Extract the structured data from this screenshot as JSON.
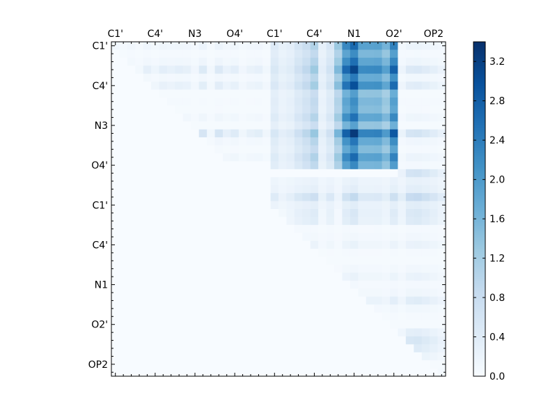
{
  "chart_data": {
    "type": "heatmap",
    "title": "",
    "xlabel": "",
    "ylabel": "",
    "n_cells": 42,
    "x_tick_labels": [
      "C1'",
      "C4'",
      "N3",
      "O4'",
      "C1'",
      "C4'",
      "N1",
      "O2'",
      "OP2"
    ],
    "y_tick_labels": [
      "C1'",
      "C4'",
      "N3",
      "O4'",
      "C1'",
      "C4'",
      "N1",
      "O2'",
      "OP2"
    ],
    "tick_every_cells": 5,
    "colorbar": {
      "min": 0.0,
      "max": 3.4,
      "ticks": [
        "0.0",
        "0.4",
        "0.8",
        "1.2",
        "1.6",
        "2.0",
        "2.4",
        "2.8",
        "3.2"
      ],
      "colormap": "Blues"
    },
    "upper_triangle_only": true,
    "blocks": [
      {
        "rows": [
          0,
          15
        ],
        "cols": [
          0,
          20
        ],
        "level": "low",
        "max_value": 1.0
      },
      {
        "rows": [
          0,
          16
        ],
        "cols": [
          20,
          28
        ],
        "level": "medium",
        "max_value": 2.2
      },
      {
        "rows": [
          0,
          16
        ],
        "cols": [
          28,
          36
        ],
        "level": "high",
        "max_value": 3.4
      },
      {
        "rows": [
          0,
          17
        ],
        "cols": [
          36,
          42
        ],
        "level": "low",
        "max_value": 1.1
      },
      {
        "rows": [
          17,
          21
        ],
        "cols": [
          20,
          42
        ],
        "level": "low-medium",
        "max_value": 1.6
      },
      {
        "rows": [
          21,
          42
        ],
        "cols": [
          21,
          42
        ],
        "level": "low",
        "max_value": 1.0
      }
    ]
  }
}
